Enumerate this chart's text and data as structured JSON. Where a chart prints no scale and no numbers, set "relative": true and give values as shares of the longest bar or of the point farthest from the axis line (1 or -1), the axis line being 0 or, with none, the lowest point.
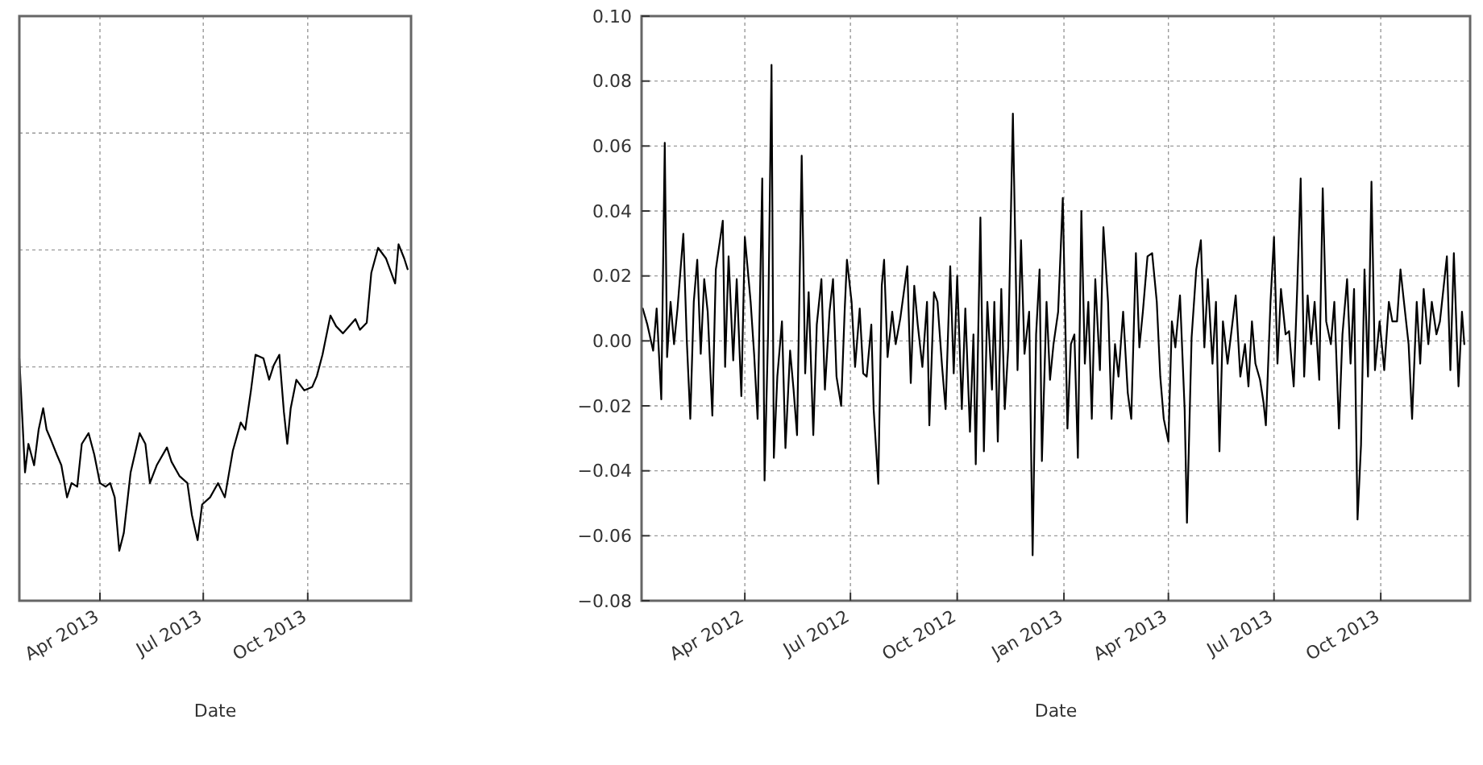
{
  "chart_data": [
    {
      "type": "line",
      "relative": true,
      "xlabel": "Date",
      "xlim": [
        "2013-01-20",
        "2013-12-31"
      ],
      "xticks": [
        {
          "value": "2013-04-01",
          "label": "Apr 2013"
        },
        {
          "value": "2013-07-01",
          "label": "Jul 2013"
        },
        {
          "value": "2013-10-01",
          "label": "Oct 2013"
        }
      ],
      "grid": true,
      "line_style": "solid",
      "series": [
        {
          "color": "#000000",
          "x": [
            "2013-01-20",
            "2013-01-25",
            "2013-01-28",
            "2013-02-02",
            "2013-02-06",
            "2013-02-10",
            "2013-02-13",
            "2013-02-17",
            "2013-02-22",
            "2013-02-26",
            "2013-03-03",
            "2013-03-07",
            "2013-03-12",
            "2013-03-16",
            "2013-03-22",
            "2013-03-27",
            "2013-04-01",
            "2013-04-06",
            "2013-04-10",
            "2013-04-14",
            "2013-04-18",
            "2013-04-22",
            "2013-04-28",
            "2013-05-06",
            "2013-05-11",
            "2013-05-15",
            "2013-05-21",
            "2013-05-30",
            "2013-06-03",
            "2013-06-10",
            "2013-06-17",
            "2013-06-21",
            "2013-06-26",
            "2013-06-30",
            "2013-07-07",
            "2013-07-14",
            "2013-07-20",
            "2013-07-27",
            "2013-08-03",
            "2013-08-07",
            "2013-08-12",
            "2013-08-16",
            "2013-08-23",
            "2013-08-28",
            "2013-09-01",
            "2013-09-06",
            "2013-09-10",
            "2013-09-13",
            "2013-09-16",
            "2013-09-21",
            "2013-09-28",
            "2013-10-05",
            "2013-10-09",
            "2013-10-14",
            "2013-10-21",
            "2013-10-26",
            "2013-11-01",
            "2013-11-12",
            "2013-11-16",
            "2013-11-22",
            "2013-11-26",
            "2013-12-02",
            "2013-12-09",
            "2013-12-17",
            "2013-12-20",
            "2013-12-25",
            "2013-12-28"
          ],
          "values": [
            0.68,
            0.36,
            0.44,
            0.38,
            0.48,
            0.54,
            0.48,
            0.45,
            0.41,
            0.38,
            0.29,
            0.33,
            0.32,
            0.44,
            0.47,
            0.41,
            0.33,
            0.32,
            0.33,
            0.29,
            0.14,
            0.19,
            0.36,
            0.47,
            0.44,
            0.33,
            0.38,
            0.43,
            0.39,
            0.35,
            0.33,
            0.24,
            0.17,
            0.27,
            0.29,
            0.33,
            0.29,
            0.42,
            0.5,
            0.48,
            0.59,
            0.69,
            0.68,
            0.62,
            0.66,
            0.69,
            0.53,
            0.44,
            0.54,
            0.62,
            0.59,
            0.6,
            0.63,
            0.69,
            0.8,
            0.77,
            0.75,
            0.79,
            0.76,
            0.78,
            0.92,
            0.99,
            0.96,
            0.89,
            1,
            0.96,
            0.93
          ]
        }
      ]
    },
    {
      "type": "line",
      "xlabel": "Date",
      "xlim": [
        "2012-01-03",
        "2013-12-17"
      ],
      "xticks": [
        {
          "value": "2012-04-01",
          "label": "Apr 2012"
        },
        {
          "value": "2012-07-01",
          "label": "Jul 2012"
        },
        {
          "value": "2012-10-01",
          "label": "Oct 2012"
        },
        {
          "value": "2013-01-01",
          "label": "Jan 2013"
        },
        {
          "value": "2013-04-01",
          "label": "Apr 2013"
        },
        {
          "value": "2013-07-01",
          "label": "Jul 2013"
        },
        {
          "value": "2013-10-01",
          "label": "Oct 2013"
        }
      ],
      "ylim": [
        -0.08,
        0.1
      ],
      "yticks": [
        {
          "value": -0.08,
          "label": "−0.08"
        },
        {
          "value": -0.06,
          "label": "−0.06"
        },
        {
          "value": -0.04,
          "label": "−0.04"
        },
        {
          "value": -0.02,
          "label": "−0.02"
        },
        {
          "value": 0,
          "label": "0.00"
        },
        {
          "value": 0.02,
          "label": "0.02"
        },
        {
          "value": 0.04,
          "label": "0.04"
        },
        {
          "value": 0.06,
          "label": "0.06"
        },
        {
          "value": 0.08,
          "label": "0.08"
        },
        {
          "value": 0.1,
          "label": "0.10"
        }
      ],
      "grid": true,
      "line_style": "solid",
      "series": [
        {
          "color": "#000000",
          "x": [
            "2012-01-04",
            "2012-01-08",
            "2012-01-13",
            "2012-01-16",
            "2012-01-20",
            "2012-01-23",
            "2012-01-25",
            "2012-01-28",
            "2012-01-31",
            "2012-02-03",
            "2012-02-08",
            "2012-02-11",
            "2012-02-14",
            "2012-02-17",
            "2012-02-20",
            "2012-02-23",
            "2012-02-26",
            "2012-02-29",
            "2012-03-04",
            "2012-03-07",
            "2012-03-13",
            "2012-03-15",
            "2012-03-18",
            "2012-03-22",
            "2012-03-25",
            "2012-03-29",
            "2012-04-01",
            "2012-04-06",
            "2012-04-09",
            "2012-04-12",
            "2012-04-16",
            "2012-04-18",
            "2012-04-21",
            "2012-04-24",
            "2012-04-26",
            "2012-04-29",
            "2012-05-03",
            "2012-05-06",
            "2012-05-10",
            "2012-05-13",
            "2012-05-16",
            "2012-05-20",
            "2012-05-23",
            "2012-05-26",
            "2012-05-30",
            "2012-06-02",
            "2012-06-06",
            "2012-06-09",
            "2012-06-13",
            "2012-06-16",
            "2012-06-19",
            "2012-06-23",
            "2012-06-26",
            "2012-06-28",
            "2012-07-02",
            "2012-07-05",
            "2012-07-09",
            "2012-07-12",
            "2012-07-15",
            "2012-07-19",
            "2012-07-21",
            "2012-07-25",
            "2012-07-28",
            "2012-07-30",
            "2012-08-02",
            "2012-08-06",
            "2012-08-09",
            "2012-08-13",
            "2012-08-16",
            "2012-08-19",
            "2012-08-22",
            "2012-08-25",
            "2012-08-28",
            "2012-09-01",
            "2012-09-05",
            "2012-09-07",
            "2012-09-11",
            "2012-09-14",
            "2012-09-18",
            "2012-09-21",
            "2012-09-25",
            "2012-09-28",
            "2012-10-01",
            "2012-10-05",
            "2012-10-08",
            "2012-10-12",
            "2012-10-15",
            "2012-10-17",
            "2012-10-21",
            "2012-10-24",
            "2012-10-27",
            "2012-10-31",
            "2012-11-02",
            "2012-11-05",
            "2012-11-08",
            "2012-11-11",
            "2012-11-14",
            "2012-11-18",
            "2012-11-22",
            "2012-11-25",
            "2012-11-28",
            "2012-12-02",
            "2012-12-05",
            "2012-12-08",
            "2012-12-11",
            "2012-12-13",
            "2012-12-17",
            "2012-12-20",
            "2012-12-23",
            "2012-12-27",
            "2012-12-31",
            "2013-01-04",
            "2013-01-07",
            "2013-01-10",
            "2013-01-13",
            "2013-01-16",
            "2013-01-19",
            "2013-01-22",
            "2013-01-25",
            "2013-01-28",
            "2013-02-01",
            "2013-02-04",
            "2013-02-08",
            "2013-02-11",
            "2013-02-14",
            "2013-02-17",
            "2013-02-21",
            "2013-02-25",
            "2013-02-28",
            "2013-03-04",
            "2013-03-07",
            "2013-03-10",
            "2013-03-14",
            "2013-03-18",
            "2013-03-22",
            "2013-03-25",
            "2013-03-28",
            "2013-04-01",
            "2013-04-04",
            "2013-04-07",
            "2013-04-11",
            "2013-04-15",
            "2013-04-17",
            "2013-04-21",
            "2013-04-25",
            "2013-04-29",
            "2013-05-02",
            "2013-05-05",
            "2013-05-09",
            "2013-05-12",
            "2013-05-15",
            "2013-05-18",
            "2013-05-22",
            "2013-05-25",
            "2013-05-29",
            "2013-06-02",
            "2013-06-06",
            "2013-06-09",
            "2013-06-12",
            "2013-06-15",
            "2013-06-19",
            "2013-06-22",
            "2013-06-24",
            "2013-06-28",
            "2013-07-01",
            "2013-07-04",
            "2013-07-07",
            "2013-07-11",
            "2013-07-14",
            "2013-07-18",
            "2013-07-21",
            "2013-07-24",
            "2013-07-27",
            "2013-07-30",
            "2013-08-02",
            "2013-08-05",
            "2013-08-09",
            "2013-08-12",
            "2013-08-15",
            "2013-08-19",
            "2013-08-22",
            "2013-08-26",
            "2013-08-29",
            "2013-09-02",
            "2013-09-05",
            "2013-09-08",
            "2013-09-11",
            "2013-09-14",
            "2013-09-17",
            "2013-09-20",
            "2013-09-23",
            "2013-09-26",
            "2013-09-30",
            "2013-10-04",
            "2013-10-08",
            "2013-10-11",
            "2013-10-15",
            "2013-10-18",
            "2013-10-21",
            "2013-10-25",
            "2013-10-28",
            "2013-11-01",
            "2013-11-04",
            "2013-11-07",
            "2013-11-11",
            "2013-11-14",
            "2013-11-18",
            "2013-11-21",
            "2013-11-24",
            "2013-11-27",
            "2013-11-30",
            "2013-12-03",
            "2013-12-07",
            "2013-12-10",
            "2013-12-12"
          ],
          "values": [
            0.01,
            0.005,
            -0.003,
            0.01,
            -0.018,
            0.061,
            -0.005,
            0.012,
            -0.001,
            0.01,
            0.033,
            0,
            -0.024,
            0.012,
            0.025,
            -0.004,
            0.019,
            0.009,
            -0.023,
            0.022,
            0.037,
            -0.008,
            0.026,
            -0.006,
            0.019,
            -0.017,
            0.032,
            0.012,
            -0.004,
            -0.024,
            0.05,
            -0.043,
            0.002,
            0.085,
            -0.036,
            -0.011,
            0.006,
            -0.033,
            -0.003,
            -0.015,
            -0.029,
            0.057,
            -0.01,
            0.015,
            -0.029,
            0.005,
            0.019,
            -0.015,
            0.009,
            0.019,
            -0.011,
            -0.02,
            0.009,
            0.025,
            0.012,
            -0.008,
            0.01,
            -0.01,
            -0.011,
            0.005,
            -0.021,
            -0.044,
            0.017,
            0.025,
            -0.005,
            0.009,
            -0.001,
            0.007,
            0.015,
            0.023,
            -0.013,
            0.017,
            0.005,
            -0.008,
            0.012,
            -0.026,
            0.015,
            0.012,
            -0.008,
            -0.021,
            0.023,
            -0.01,
            0.02,
            -0.021,
            0.01,
            -0.028,
            0.002,
            -0.038,
            0.038,
            -0.034,
            0.012,
            -0.015,
            0.012,
            -0.031,
            0.016,
            -0.021,
            -0.002,
            0.07,
            -0.009,
            0.031,
            -0.004,
            0.009,
            -0.066,
            0.002,
            0.022,
            -0.037,
            0.012,
            -0.012,
            -0.001,
            0.009,
            0.044,
            -0.027,
            -0.001,
            0.002,
            -0.036,
            0.04,
            -0.007,
            0.012,
            -0.024,
            0.019,
            -0.009,
            0.035,
            0.012,
            -0.024,
            -0.001,
            -0.011,
            0.009,
            -0.016,
            -0.024,
            0.027,
            -0.002,
            0.009,
            0.026,
            0.027,
            0.012,
            -0.011,
            -0.024,
            -0.031,
            0.006,
            -0.002,
            0.014,
            -0.021,
            -0.056,
            0.001,
            0.022,
            0.031,
            -0.002,
            0.019,
            -0.007,
            0.012,
            -0.034,
            0.006,
            -0.007,
            0.002,
            0.014,
            -0.011,
            -0.001,
            -0.014,
            0.006,
            -0.007,
            -0.012,
            -0.019,
            -0.026,
            0.012,
            0.032,
            -0.007,
            0.016,
            0.002,
            0.003,
            -0.014,
            0.016,
            0.05,
            -0.011,
            0.014,
            -0.001,
            0.012,
            -0.012,
            0.047,
            0.006,
            -0.001,
            0.012,
            -0.027,
            0.002,
            0.019,
            -0.007,
            0.016,
            -0.055,
            -0.032,
            0.022,
            -0.011,
            0.049,
            -0.009,
            0.006,
            -0.009,
            0.012,
            0.006,
            0.006,
            0.022,
            0.012,
            -0.001,
            -0.024,
            0.012,
            -0.007,
            0.016,
            -0.001,
            0.012,
            0.002,
            0.006,
            0.016,
            0.026,
            -0.009,
            0.027,
            -0.014,
            0.009,
            -0.001
          ]
        }
      ]
    }
  ]
}
